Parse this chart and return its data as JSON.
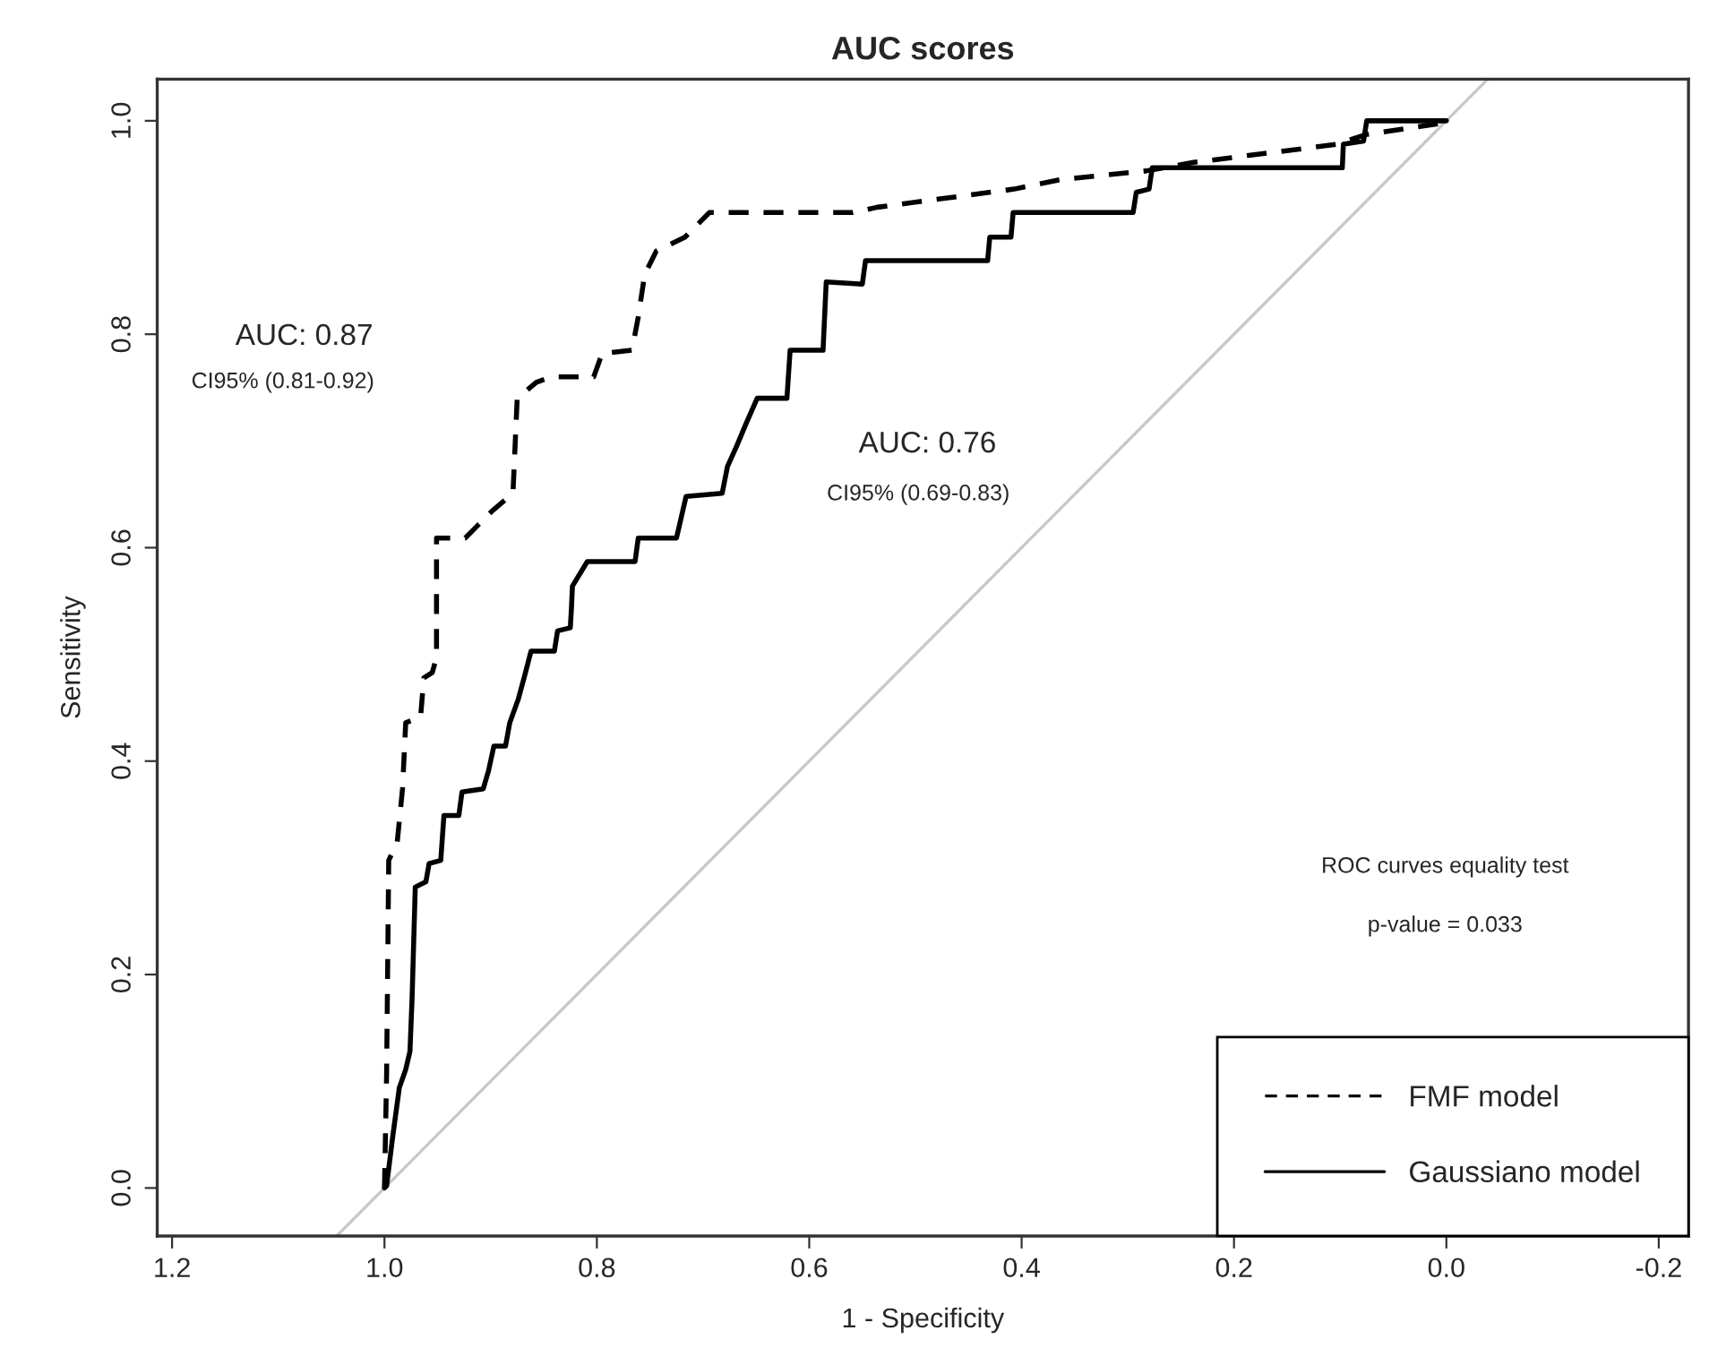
{
  "chart_data": {
    "type": "line",
    "title": "AUC scores",
    "xlabel": "1 - Specificity",
    "ylabel": "Sensitivity",
    "xlim": [
      1.214,
      -0.228
    ],
    "ylim": [
      -0.045,
      1.039
    ],
    "xticks": [
      {
        "value": 1.2,
        "label": "1.2"
      },
      {
        "value": 1.0,
        "label": "1.0"
      },
      {
        "value": 0.8,
        "label": "0.8"
      },
      {
        "value": 0.6,
        "label": "0.6"
      },
      {
        "value": 0.4,
        "label": "0.4"
      },
      {
        "value": 0.2,
        "label": "0.2"
      },
      {
        "value": 0.0,
        "label": "0.0"
      },
      {
        "value": -0.2,
        "label": "-0.2"
      }
    ],
    "yticks": [
      {
        "value": 0.0,
        "label": "0.0"
      },
      {
        "value": 0.2,
        "label": "0.2"
      },
      {
        "value": 0.4,
        "label": "0.4"
      },
      {
        "value": 0.6,
        "label": "0.6"
      },
      {
        "value": 0.8,
        "label": "0.8"
      },
      {
        "value": 1.0,
        "label": "1.0"
      }
    ],
    "grid": false,
    "legend": "bottom right",
    "series": [
      {
        "color": "#c8c8c8",
        "line_style": "solid",
        "x": [
          1.045,
          -0.039
        ],
        "values": [
          -0.045,
          1.039
        ]
      },
      {
        "name": "FMF model",
        "color": "#000000",
        "line_style": "dashed",
        "x": [
          1.0,
          0.998,
          0.996,
          0.988,
          0.983,
          0.98,
          0.966,
          0.963,
          0.955,
          0.951,
          0.951,
          0.924,
          0.913,
          0.899,
          0.879,
          0.875,
          0.857,
          0.843,
          0.803,
          0.795,
          0.767,
          0.761,
          0.755,
          0.744,
          0.717,
          0.694,
          0.559,
          0.536,
          0.407,
          0.363,
          0.283,
          0.238,
          0.103,
          0.076,
          0.002,
          0.0
        ],
        "values": [
          0.0,
          0.106,
          0.307,
          0.324,
          0.374,
          0.436,
          0.441,
          0.478,
          0.483,
          0.497,
          0.609,
          0.609,
          0.62,
          0.634,
          0.651,
          0.74,
          0.755,
          0.76,
          0.76,
          0.782,
          0.785,
          0.816,
          0.856,
          0.878,
          0.891,
          0.914,
          0.914,
          0.919,
          0.936,
          0.945,
          0.953,
          0.961,
          0.978,
          0.987,
          0.998,
          1.0
        ]
      },
      {
        "name": "Gaussiano model",
        "color": "#000000",
        "line_style": "solid",
        "x": [
          1.0,
          0.998,
          0.992,
          0.986,
          0.98,
          0.976,
          0.974,
          0.971,
          0.961,
          0.958,
          0.947,
          0.944,
          0.93,
          0.927,
          0.907,
          0.902,
          0.897,
          0.886,
          0.882,
          0.874,
          0.868,
          0.862,
          0.84,
          0.837,
          0.825,
          0.824,
          0.823,
          0.809,
          0.764,
          0.761,
          0.725,
          0.716,
          0.682,
          0.677,
          0.668,
          0.66,
          0.649,
          0.621,
          0.618,
          0.587,
          0.584,
          0.55,
          0.547,
          0.432,
          0.43,
          0.41,
          0.408,
          0.295,
          0.292,
          0.28,
          0.277,
          0.098,
          0.097,
          0.078,
          0.075,
          0.0
        ],
        "values": [
          0.0,
          0.002,
          0.05,
          0.094,
          0.111,
          0.128,
          0.178,
          0.282,
          0.287,
          0.304,
          0.307,
          0.349,
          0.349,
          0.371,
          0.374,
          0.391,
          0.414,
          0.414,
          0.436,
          0.458,
          0.48,
          0.503,
          0.503,
          0.522,
          0.525,
          0.542,
          0.564,
          0.587,
          0.587,
          0.609,
          0.609,
          0.648,
          0.651,
          0.676,
          0.696,
          0.715,
          0.74,
          0.74,
          0.785,
          0.785,
          0.849,
          0.847,
          0.869,
          0.869,
          0.891,
          0.891,
          0.914,
          0.914,
          0.933,
          0.936,
          0.956,
          0.956,
          0.978,
          0.981,
          1.0,
          1.0
        ]
      }
    ],
    "annotations": [
      "AUC: 0.87",
      "CI95% (0.81-0.92)",
      "AUC: 0.76",
      "CI95% (0.69-0.83)",
      "ROC curves equality test",
      "p-value = 0.033"
    ]
  }
}
